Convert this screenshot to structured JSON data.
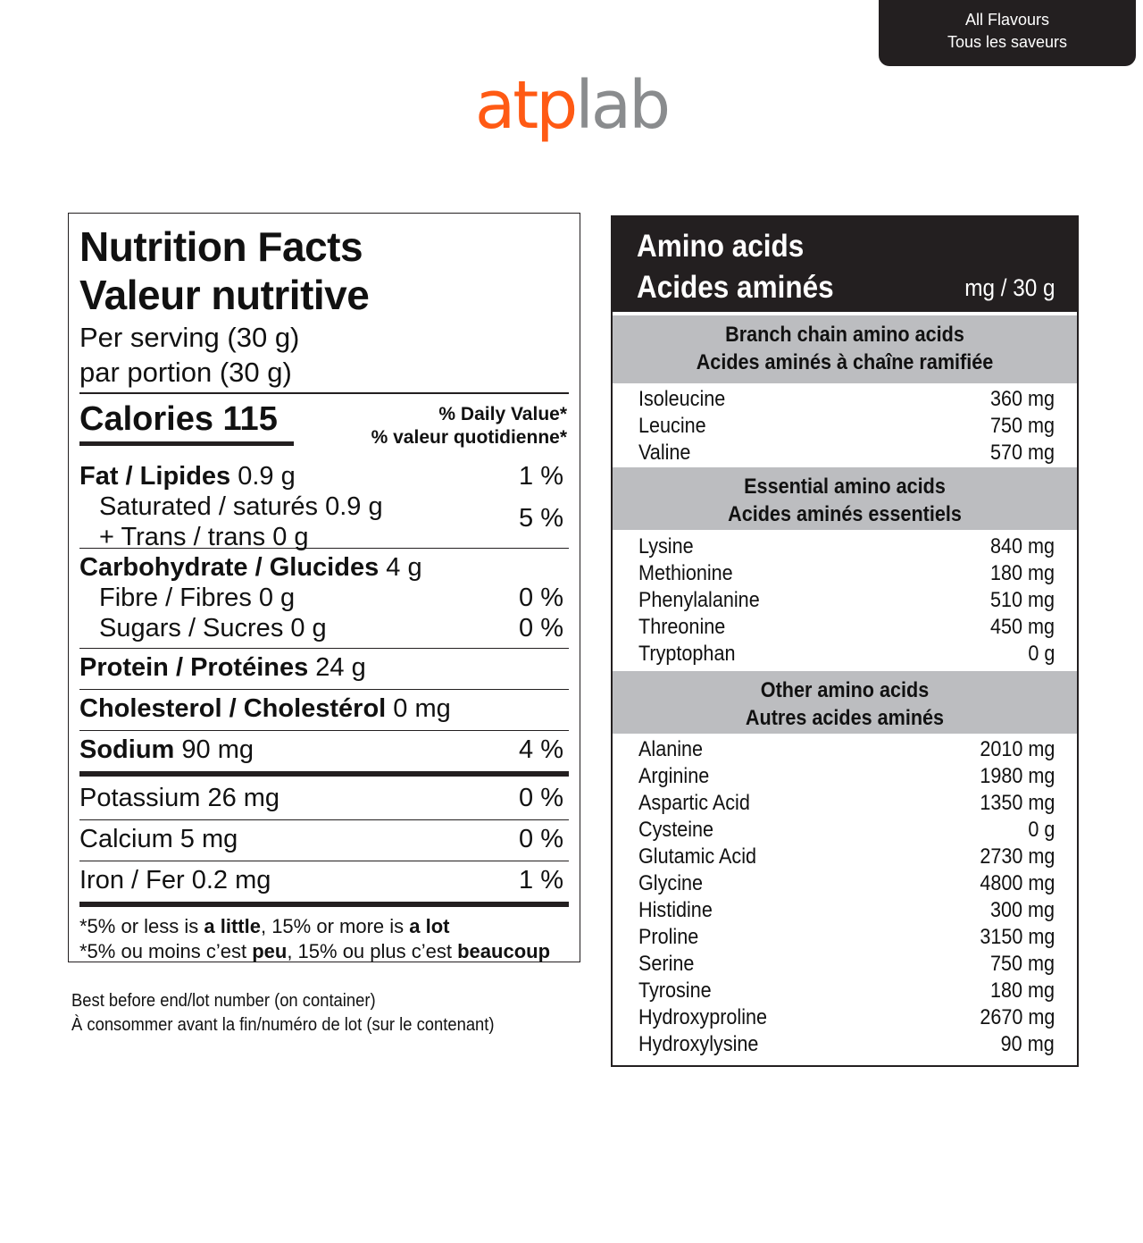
{
  "flavour_tab": {
    "line1": "All Flavours",
    "line2": "Tous les saveurs"
  },
  "logo": {
    "part1": "atp",
    "part2": "lab"
  },
  "nutrition": {
    "title_en": "Nutrition Facts",
    "title_fr": "Valeur nutritive",
    "serving_en": "Per serving (30 g)",
    "serving_fr": "par portion (30 g)",
    "calories_label": "Calories 115",
    "dv_en": "% Daily Value*",
    "dv_fr": "% valeur quotidienne*",
    "fat": {
      "label": "Fat / Lipides",
      "amount": "0.9 g",
      "pct": "1 %"
    },
    "saturated": {
      "label": "Saturated / saturés 0.9 g"
    },
    "trans": {
      "label": "+ Trans / trans 0 g"
    },
    "sat_trans_pct": "5 %",
    "carb": {
      "label": "Carbohydrate / Glucides",
      "amount": "4 g"
    },
    "fibre": {
      "label": "Fibre / Fibres 0 g",
      "pct": "0 %"
    },
    "sugars": {
      "label": "Sugars / Sucres 0 g",
      "pct": "0 %"
    },
    "protein": {
      "label": "Protein / Protéines",
      "amount": "24 g"
    },
    "cholesterol": {
      "label": "Cholesterol / Cholestérol",
      "amount": "0 mg"
    },
    "sodium": {
      "label": "Sodium",
      "amount": "90 mg",
      "pct": "4 %"
    },
    "potassium": {
      "label": "Potassium 26 mg",
      "pct": "0 %"
    },
    "calcium": {
      "label": "Calcium 5 mg",
      "pct": "0 %"
    },
    "iron": {
      "label": "Iron / Fer 0.2 mg",
      "pct": "1 %"
    },
    "footnote_en": {
      "a": "*5% or less is ",
      "b": "a little",
      "c": ", 15% or more is ",
      "d": "a lot"
    },
    "footnote_fr": {
      "a": "*5% ou moins c’est ",
      "b": "peu",
      "c": ", 15% ou plus c’est ",
      "d": "beaucoup"
    }
  },
  "best_before": {
    "en": "Best before end/lot number (on container)",
    "fr": "À consommer avant la fin/numéro de lot (sur le contenant)"
  },
  "amino": {
    "title_en": "Amino acids",
    "title_fr": "Acides aminés",
    "unit": "mg / 30 g",
    "sections": [
      {
        "title_en": "Branch chain amino acids",
        "title_fr": "Acides aminés à chaîne ramifiée",
        "items": [
          {
            "name": "Isoleucine",
            "value": "360 mg"
          },
          {
            "name": "Leucine",
            "value": "750 mg"
          },
          {
            "name": "Valine",
            "value": "570 mg"
          }
        ]
      },
      {
        "title_en": "Essential amino acids",
        "title_fr": "Acides aminés essentiels",
        "items": [
          {
            "name": "Lysine",
            "value": "840 mg"
          },
          {
            "name": "Methionine",
            "value": "180 mg"
          },
          {
            "name": "Phenylalanine",
            "value": "510 mg"
          },
          {
            "name": "Threonine",
            "value": "450 mg"
          },
          {
            "name": "Tryptophan",
            "value": "0 g"
          }
        ]
      },
      {
        "title_en": "Other amino acids",
        "title_fr": "Autres acides aminés",
        "items": [
          {
            "name": "Alanine",
            "value": "2010 mg"
          },
          {
            "name": "Arginine",
            "value": "1980 mg"
          },
          {
            "name": "Aspartic Acid",
            "value": "1350 mg"
          },
          {
            "name": "Cysteine",
            "value": "0 g"
          },
          {
            "name": "Glutamic Acid",
            "value": "2730 mg"
          },
          {
            "name": "Glycine",
            "value": "4800 mg"
          },
          {
            "name": "Histidine",
            "value": "300 mg"
          },
          {
            "name": "Proline",
            "value": "3150 mg"
          },
          {
            "name": "Serine",
            "value": "750 mg"
          },
          {
            "name": "Tyrosine",
            "value": "180 mg"
          },
          {
            "name": "Hydroxyproline",
            "value": "2670 mg"
          },
          {
            "name": "Hydroxylysine",
            "value": "90 mg"
          }
        ]
      }
    ]
  }
}
